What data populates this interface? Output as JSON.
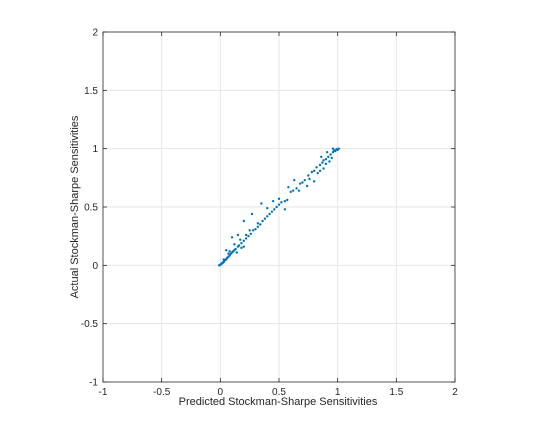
{
  "chart_data": {
    "type": "scatter",
    "title": "",
    "xlabel": "Predicted Stockman-Sharpe Sensitivities",
    "ylabel": "Actual Stockman-Sharpe Sensitivities",
    "xlim": [
      -1,
      2
    ],
    "ylim": [
      -1,
      2
    ],
    "xticks": [
      -1,
      -0.5,
      0,
      0.5,
      1,
      1.5,
      2
    ],
    "yticks": [
      -1,
      -0.5,
      0,
      0.5,
      1,
      1.5,
      2
    ],
    "xtick_labels": [
      "-1",
      "-0.5",
      "0",
      "0.5",
      "1",
      "1.5",
      "2"
    ],
    "ytick_labels": [
      "-1",
      "-0.5",
      "0",
      "0.5",
      "1",
      "1.5",
      "2"
    ],
    "grid": true,
    "marker_color": "#0072BD",
    "series": [
      {
        "points": [
          [
            -0.01,
            0.0
          ],
          [
            0.0,
            0.005
          ],
          [
            0.005,
            0.01
          ],
          [
            0.01,
            0.012
          ],
          [
            0.015,
            0.018
          ],
          [
            0.02,
            0.02
          ],
          [
            0.025,
            0.028
          ],
          [
            0.03,
            0.03
          ],
          [
            0.035,
            0.04
          ],
          [
            0.04,
            0.045
          ],
          [
            0.05,
            0.05
          ],
          [
            0.055,
            0.06
          ],
          [
            0.06,
            0.065
          ],
          [
            0.07,
            0.075
          ],
          [
            0.08,
            0.085
          ],
          [
            0.09,
            0.1
          ],
          [
            0.1,
            0.11
          ],
          [
            0.11,
            0.12
          ],
          [
            0.12,
            0.13
          ],
          [
            0.13,
            0.14
          ],
          [
            0.15,
            0.16
          ],
          [
            0.16,
            0.17
          ],
          [
            0.18,
            0.19
          ],
          [
            0.2,
            0.21
          ],
          [
            0.22,
            0.23
          ],
          [
            0.24,
            0.25
          ],
          [
            0.26,
            0.27
          ],
          [
            0.28,
            0.3
          ],
          [
            0.3,
            0.31
          ],
          [
            0.32,
            0.33
          ],
          [
            0.34,
            0.35
          ],
          [
            0.36,
            0.38
          ],
          [
            0.38,
            0.4
          ],
          [
            0.4,
            0.42
          ],
          [
            0.42,
            0.44
          ],
          [
            0.44,
            0.46
          ],
          [
            0.46,
            0.48
          ],
          [
            0.48,
            0.5
          ],
          [
            0.5,
            0.52
          ],
          [
            0.52,
            0.54
          ],
          [
            0.55,
            0.55
          ],
          [
            0.57,
            0.56
          ],
          [
            0.6,
            0.63
          ],
          [
            0.62,
            0.64
          ],
          [
            0.65,
            0.66
          ],
          [
            0.68,
            0.7
          ],
          [
            0.7,
            0.71
          ],
          [
            0.72,
            0.73
          ],
          [
            0.75,
            0.77
          ],
          [
            0.78,
            0.8
          ],
          [
            0.8,
            0.81
          ],
          [
            0.82,
            0.84
          ],
          [
            0.85,
            0.86
          ],
          [
            0.87,
            0.88
          ],
          [
            0.88,
            0.9
          ],
          [
            0.9,
            0.91
          ],
          [
            0.92,
            0.93
          ],
          [
            0.94,
            0.95
          ],
          [
            0.96,
            0.97
          ],
          [
            0.98,
            0.98
          ],
          [
            1.0,
            0.99
          ],
          [
            1.01,
            1.0
          ],
          [
            0.97,
            0.985
          ],
          [
            0.99,
            0.995
          ],
          [
            0.05,
            0.13
          ],
          [
            0.1,
            0.24
          ],
          [
            0.15,
            0.26
          ],
          [
            0.2,
            0.38
          ],
          [
            0.25,
            0.3
          ],
          [
            0.35,
            0.53
          ],
          [
            0.27,
            0.44
          ],
          [
            0.4,
            0.49
          ],
          [
            0.58,
            0.67
          ],
          [
            0.55,
            0.48
          ],
          [
            0.45,
            0.55
          ],
          [
            0.5,
            0.57
          ],
          [
            0.63,
            0.73
          ],
          [
            0.67,
            0.64
          ],
          [
            0.74,
            0.68
          ],
          [
            0.76,
            0.74
          ],
          [
            0.8,
            0.72
          ],
          [
            0.83,
            0.79
          ],
          [
            0.85,
            0.81
          ],
          [
            0.88,
            0.83
          ],
          [
            0.9,
            0.87
          ],
          [
            0.93,
            0.89
          ],
          [
            0.95,
            0.92
          ],
          [
            0.86,
            0.93
          ],
          [
            0.91,
            0.97
          ],
          [
            0.96,
            1.0
          ],
          [
            0.03,
            0.05
          ],
          [
            0.07,
            0.1
          ],
          [
            0.08,
            0.12
          ],
          [
            0.12,
            0.18
          ],
          [
            0.17,
            0.22
          ],
          [
            0.18,
            0.15
          ],
          [
            0.22,
            0.26
          ],
          [
            0.32,
            0.36
          ],
          [
            0.2,
            0.16
          ],
          [
            0.14,
            0.11
          ]
        ]
      }
    ]
  }
}
